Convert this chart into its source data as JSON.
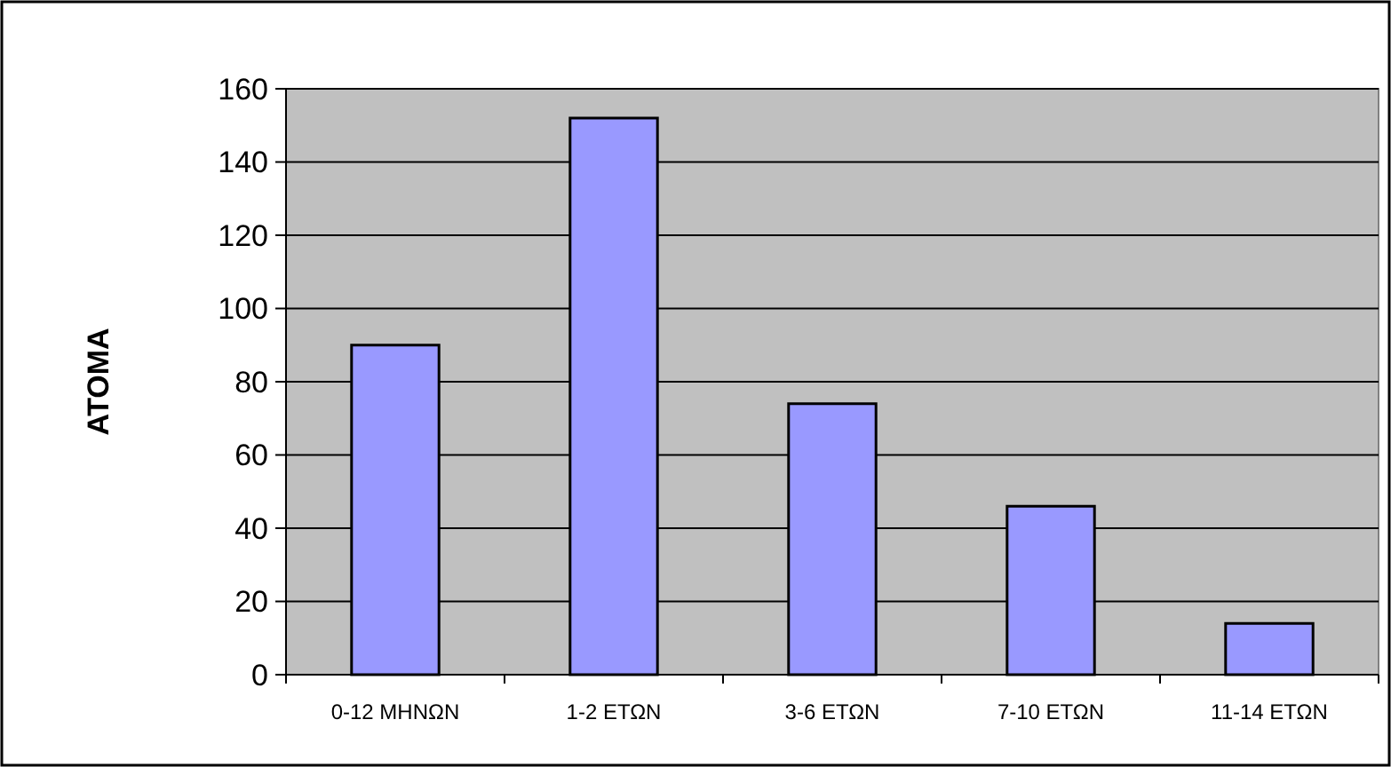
{
  "chart_data": {
    "type": "bar",
    "ylabel": "ΑΤΟΜΑ",
    "categories": [
      "0-12 ΜΗΝΩΝ",
      "1-2 ΕΤΩΝ",
      "3-6 ΕΤΩΝ",
      "7-10 ΕΤΩΝ",
      "11-14 ΕΤΩΝ"
    ],
    "values": [
      90,
      152,
      74,
      46,
      14
    ],
    "color": "#9999ff",
    "ylim": [
      0,
      160
    ],
    "yticks": [
      0,
      20,
      40,
      60,
      80,
      100,
      120,
      140,
      160
    ],
    "grid": "y"
  }
}
